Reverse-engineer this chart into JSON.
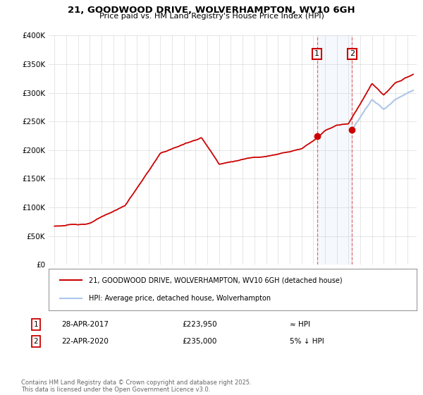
{
  "title1": "21, GOODWOOD DRIVE, WOLVERHAMPTON, WV10 6GH",
  "title2": "Price paid vs. HM Land Registry's House Price Index (HPI)",
  "legend_line1": "21, GOODWOOD DRIVE, WOLVERHAMPTON, WV10 6GH (detached house)",
  "legend_line2": "HPI: Average price, detached house, Wolverhampton",
  "footnote": "Contains HM Land Registry data © Crown copyright and database right 2025.\nThis data is licensed under the Open Government Licence v3.0.",
  "sale1_date": "28-APR-2017",
  "sale1_price": "£223,950",
  "sale1_hpi": "≈ HPI",
  "sale2_date": "22-APR-2020",
  "sale2_price": "£235,000",
  "sale2_hpi": "5% ↓ HPI",
  "hpi_color": "#aec6e8",
  "price_color": "#cc0000",
  "vline1_x": 2017.32,
  "vline2_x": 2020.31,
  "sale1_price_val": 223950,
  "sale2_price_val": 235000,
  "ylim": [
    0,
    400000
  ],
  "xlim": [
    1994.5,
    2025.8
  ],
  "yticks": [
    0,
    50000,
    100000,
    150000,
    200000,
    250000,
    300000,
    350000,
    400000
  ]
}
